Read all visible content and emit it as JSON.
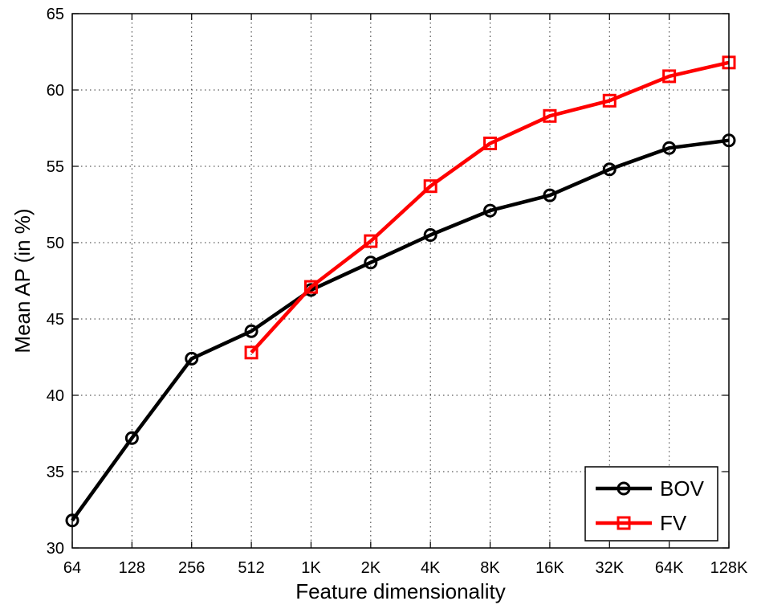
{
  "chart_data": {
    "type": "line",
    "title": "",
    "xlabel": "Feature dimensionality",
    "ylabel": "Mean AP (in %)",
    "categories": [
      "64",
      "128",
      "256",
      "512",
      "1K",
      "2K",
      "4K",
      "8K",
      "16K",
      "32K",
      "64K",
      "128K"
    ],
    "ylim": [
      30,
      65
    ],
    "yticks": [
      30,
      35,
      40,
      45,
      50,
      55,
      60,
      65
    ],
    "grid": true,
    "legend_position": "bottom-right",
    "series": [
      {
        "name": "BOV",
        "color": "#000000",
        "marker": "circle",
        "values": [
          31.8,
          37.2,
          42.4,
          44.2,
          46.9,
          48.7,
          50.5,
          52.1,
          53.1,
          54.8,
          56.2,
          56.7
        ]
      },
      {
        "name": "FV",
        "color": "#ff0000",
        "marker": "square",
        "values": [
          null,
          null,
          null,
          42.8,
          47.1,
          50.1,
          53.7,
          56.5,
          58.3,
          59.3,
          60.9,
          61.8
        ]
      }
    ]
  }
}
